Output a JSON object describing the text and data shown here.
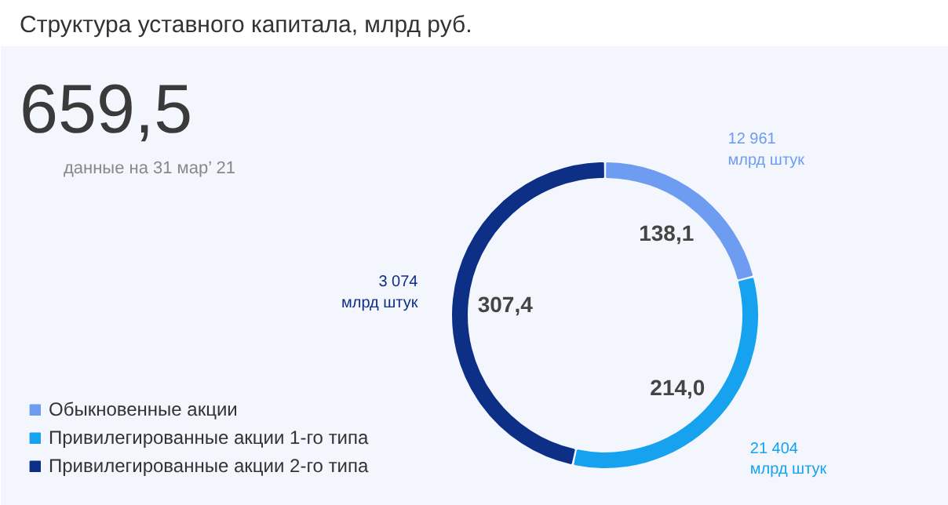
{
  "chart_data": {
    "type": "donut",
    "title": "Структура уставного капитала, млрд руб.",
    "categories": [
      "Обыкновенные акции",
      "Привилегированные акции 1-го типа",
      "Привилегированные акции 2-го типа"
    ],
    "values": [
      138.1,
      214.0,
      307.4
    ],
    "colors": [
      "#6d9cf0",
      "#16a2ee",
      "#0e2f86"
    ],
    "value_labels": [
      "138,1",
      "214,0",
      "307,4"
    ],
    "annotations": [
      "659,5",
      "данные на 31 мар’ 21",
      "12 961\nмлрд штук",
      "21 404\nмлрд штук",
      "3 074\nмлрд штук"
    ],
    "legend": "bottom left"
  }
}
